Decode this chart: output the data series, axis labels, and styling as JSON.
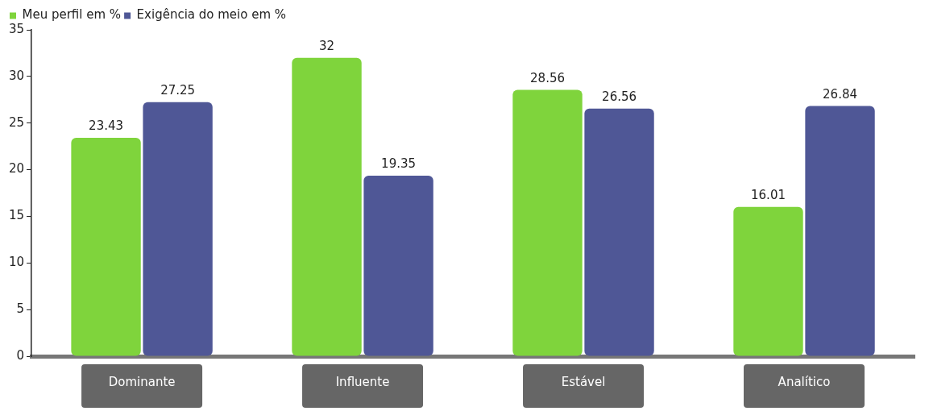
{
  "chart_data": {
    "type": "bar",
    "categories": [
      "Dominante",
      "Influente",
      "Estável",
      "Analítico"
    ],
    "series": [
      {
        "name": "Meu perfil em %",
        "color": "#7fd43c",
        "values": [
          23.43,
          32,
          28.56,
          16.01
        ]
      },
      {
        "name": "Exigência do meio em %",
        "color": "#4f5796",
        "values": [
          27.25,
          19.35,
          26.56,
          26.84
        ]
      }
    ],
    "ylim": [
      0,
      35
    ],
    "yticks": [
      0,
      5,
      10,
      15,
      20,
      25,
      30,
      35
    ],
    "data_labels": true,
    "legend": "top left",
    "grid": false
  }
}
